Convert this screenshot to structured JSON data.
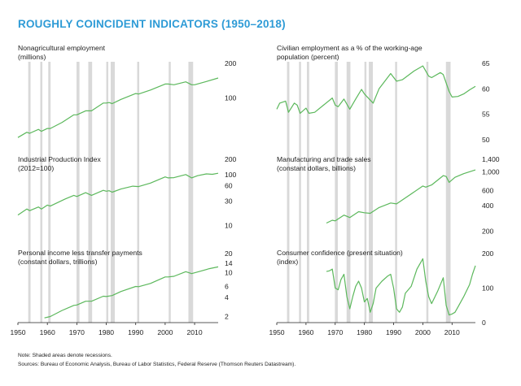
{
  "title": "ROUGHLY COINCIDENT INDICATORS (1950–2018)",
  "note": "Note: Shaded areas denote recessions.",
  "sources": "Sources: Bureau of Economic Analysis, Bureau of Labor Statistics, Federal Reserve (Thomson Reuters Datastream).",
  "colors": {
    "title": "#2e9bd6",
    "line": "#5cb85c",
    "recession": "#d9d9d9",
    "axis": "#222222"
  },
  "chart_data": {
    "type": "line",
    "x_axis": {
      "range": [
        1950,
        2018
      ],
      "ticks": [
        1950,
        1960,
        1970,
        1980,
        1990,
        2000,
        2010
      ]
    },
    "recessions": [
      [
        1953.5,
        1954.3
      ],
      [
        1957.6,
        1958.3
      ],
      [
        1960.3,
        1961.1
      ],
      [
        1969.9,
        1970.9
      ],
      [
        1973.9,
        1975.2
      ],
      [
        1980.0,
        1980.5
      ],
      [
        1981.5,
        1982.9
      ],
      [
        1990.5,
        1991.2
      ],
      [
        2001.2,
        2001.9
      ],
      [
        2007.9,
        2009.5
      ]
    ],
    "panels": [
      {
        "label_lines": [
          "Nonagricultural employment",
          "(millions)"
        ],
        "scale": "log",
        "ylim": [
          43,
          200
        ],
        "y_ticks": [
          {
            "v": 200,
            "t": "200"
          },
          {
            "v": 100,
            "t": "100"
          }
        ],
        "x_start": 1950,
        "points": [
          [
            1950,
            45
          ],
          [
            1953,
            50
          ],
          [
            1954,
            49
          ],
          [
            1957,
            53
          ],
          [
            1958,
            51
          ],
          [
            1960,
            54
          ],
          [
            1961,
            54
          ],
          [
            1965,
            61
          ],
          [
            1969,
            71
          ],
          [
            1970,
            71
          ],
          [
            1973,
            77
          ],
          [
            1975,
            77
          ],
          [
            1979,
            90
          ],
          [
            1980,
            90
          ],
          [
            1981,
            91
          ],
          [
            1982,
            89
          ],
          [
            1985,
            97
          ],
          [
            1990,
            109
          ],
          [
            1991,
            108
          ],
          [
            1995,
            117
          ],
          [
            2000,
            132
          ],
          [
            2001,
            132
          ],
          [
            2003,
            130
          ],
          [
            2007,
            138
          ],
          [
            2009,
            130
          ],
          [
            2010,
            130
          ],
          [
            2014,
            139
          ],
          [
            2018,
            149
          ]
        ]
      },
      {
        "label_lines": [
          "Civilian employment as a % of the working-age",
          "population (percent)"
        ],
        "scale": "linear",
        "ylim": [
          50,
          65
        ],
        "y_ticks": [
          {
            "v": 65,
            "t": "65"
          },
          {
            "v": 60,
            "t": "60"
          },
          {
            "v": 55,
            "t": "55"
          },
          {
            "v": 50,
            "t": "50"
          }
        ],
        "x_start": 1950,
        "points": [
          [
            1950,
            56
          ],
          [
            1951,
            57.2
          ],
          [
            1953,
            57.6
          ],
          [
            1954,
            55.4
          ],
          [
            1956,
            57.2
          ],
          [
            1957,
            56.8
          ],
          [
            1958,
            55.2
          ],
          [
            1960,
            56.2
          ],
          [
            1961,
            55.2
          ],
          [
            1963,
            55.4
          ],
          [
            1966,
            56.8
          ],
          [
            1969,
            58.2
          ],
          [
            1970,
            56.8
          ],
          [
            1971,
            56.5
          ],
          [
            1973,
            58
          ],
          [
            1975,
            56
          ],
          [
            1977,
            58
          ],
          [
            1979,
            59.9
          ],
          [
            1980,
            59
          ],
          [
            1983,
            57.2
          ],
          [
            1985,
            60
          ],
          [
            1989,
            63
          ],
          [
            1991,
            61.5
          ],
          [
            1993,
            61.8
          ],
          [
            1997,
            63.5
          ],
          [
            2000,
            64.5
          ],
          [
            2002,
            62.5
          ],
          [
            2003,
            62.2
          ],
          [
            2006,
            63.2
          ],
          [
            2007,
            62.8
          ],
          [
            2009,
            59.5
          ],
          [
            2010,
            58.4
          ],
          [
            2012,
            58.5
          ],
          [
            2014,
            59
          ],
          [
            2016,
            59.8
          ],
          [
            2018,
            60.5
          ]
        ]
      },
      {
        "label_lines": [
          "Industrial Production Index",
          "(2012=100)"
        ],
        "scale": "log",
        "ylim": [
          7,
          200
        ],
        "y_ticks": [
          {
            "v": 200,
            "t": "200"
          },
          {
            "v": 100,
            "t": "100"
          },
          {
            "v": 60,
            "t": "60"
          },
          {
            "v": 30,
            "t": "30"
          },
          {
            "v": 10,
            "t": "10"
          }
        ],
        "x_start": 1950,
        "points": [
          [
            1950,
            16
          ],
          [
            1953,
            21
          ],
          [
            1954,
            19.5
          ],
          [
            1957,
            23
          ],
          [
            1958,
            21
          ],
          [
            1960,
            25
          ],
          [
            1961,
            24
          ],
          [
            1966,
            33
          ],
          [
            1969,
            39
          ],
          [
            1970,
            37
          ],
          [
            1973,
            44
          ],
          [
            1975,
            39
          ],
          [
            1979,
            49
          ],
          [
            1980,
            47
          ],
          [
            1981,
            48
          ],
          [
            1982,
            45
          ],
          [
            1985,
            52
          ],
          [
            1989,
            59
          ],
          [
            1991,
            58
          ],
          [
            1995,
            68
          ],
          [
            2000,
            90
          ],
          [
            2001,
            86
          ],
          [
            2003,
            87
          ],
          [
            2007,
            100
          ],
          [
            2009,
            86
          ],
          [
            2011,
            95
          ],
          [
            2014,
            103
          ],
          [
            2016,
            101
          ],
          [
            2018,
            106
          ]
        ]
      },
      {
        "label_lines": [
          "Manufacturing and trade sales",
          "(constant dollars, billions)"
        ],
        "scale": "log",
        "ylim": [
          190,
          1400
        ],
        "y_ticks": [
          {
            "v": 1400,
            "t": "1,400"
          },
          {
            "v": 1000,
            "t": "1,000"
          },
          {
            "v": 600,
            "t": "600"
          },
          {
            "v": 400,
            "t": "400"
          },
          {
            "v": 200,
            "t": "200"
          }
        ],
        "x_start": 1967,
        "points": [
          [
            1967,
            250
          ],
          [
            1969,
            270
          ],
          [
            1970,
            265
          ],
          [
            1973,
            310
          ],
          [
            1975,
            290
          ],
          [
            1978,
            340
          ],
          [
            1980,
            330
          ],
          [
            1982,
            325
          ],
          [
            1985,
            380
          ],
          [
            1989,
            430
          ],
          [
            1991,
            420
          ],
          [
            1995,
            520
          ],
          [
            2000,
            680
          ],
          [
            2001,
            660
          ],
          [
            2003,
            700
          ],
          [
            2007,
            900
          ],
          [
            2008,
            880
          ],
          [
            2009,
            750
          ],
          [
            2011,
            860
          ],
          [
            2014,
            950
          ],
          [
            2018,
            1050
          ]
        ]
      },
      {
        "label_lines": [
          "Personal income less transfer payments",
          "(constant dollars, trillions)"
        ],
        "scale": "log",
        "ylim": [
          1.6,
          20
        ],
        "y_ticks": [
          {
            "v": 20,
            "t": "20"
          },
          {
            "v": 14,
            "t": "14"
          },
          {
            "v": 10,
            "t": "10"
          },
          {
            "v": 6,
            "t": "6"
          },
          {
            "v": 4,
            "t": "4"
          },
          {
            "v": 2,
            "t": "2"
          }
        ],
        "x_start": 1959,
        "points": [
          [
            1959,
            1.9
          ],
          [
            1961,
            2.0
          ],
          [
            1965,
            2.5
          ],
          [
            1969,
            3.0
          ],
          [
            1970,
            3.05
          ],
          [
            1973,
            3.5
          ],
          [
            1975,
            3.5
          ],
          [
            1979,
            4.2
          ],
          [
            1980,
            4.15
          ],
          [
            1982,
            4.3
          ],
          [
            1985,
            5.0
          ],
          [
            1990,
            6.0
          ],
          [
            1991,
            5.95
          ],
          [
            1995,
            6.7
          ],
          [
            2000,
            8.5
          ],
          [
            2001,
            8.5
          ],
          [
            2003,
            8.7
          ],
          [
            2007,
            10.3
          ],
          [
            2009,
            9.6
          ],
          [
            2012,
            10.5
          ],
          [
            2015,
            11.5
          ],
          [
            2018,
            12.3
          ]
        ]
      },
      {
        "label_lines": [
          "Consumer confidence (present situation)",
          "(index)"
        ],
        "scale": "linear",
        "ylim": [
          0,
          200
        ],
        "y_ticks": [
          {
            "v": 200,
            "t": "200"
          },
          {
            "v": 100,
            "t": "100"
          },
          {
            "v": 0,
            "t": "0"
          }
        ],
        "x_start": 1967,
        "points": [
          [
            1967,
            148
          ],
          [
            1968,
            150
          ],
          [
            1969,
            155
          ],
          [
            1970,
            100
          ],
          [
            1971,
            95
          ],
          [
            1972,
            125
          ],
          [
            1973,
            140
          ],
          [
            1974,
            75
          ],
          [
            1975,
            40
          ],
          [
            1976,
            75
          ],
          [
            1977,
            105
          ],
          [
            1978,
            120
          ],
          [
            1979,
            100
          ],
          [
            1980,
            60
          ],
          [
            1981,
            70
          ],
          [
            1982,
            30
          ],
          [
            1983,
            55
          ],
          [
            1984,
            100
          ],
          [
            1986,
            120
          ],
          [
            1988,
            135
          ],
          [
            1989,
            140
          ],
          [
            1990,
            100
          ],
          [
            1991,
            40
          ],
          [
            1992,
            30
          ],
          [
            1993,
            45
          ],
          [
            1994,
            85
          ],
          [
            1996,
            105
          ],
          [
            1998,
            155
          ],
          [
            2000,
            185
          ],
          [
            2001,
            120
          ],
          [
            2002,
            75
          ],
          [
            2003,
            55
          ],
          [
            2005,
            90
          ],
          [
            2007,
            130
          ],
          [
            2008,
            50
          ],
          [
            2009,
            22
          ],
          [
            2010,
            25
          ],
          [
            2011,
            30
          ],
          [
            2012,
            45
          ],
          [
            2014,
            75
          ],
          [
            2016,
            110
          ],
          [
            2017,
            140
          ],
          [
            2018,
            165
          ]
        ]
      }
    ]
  }
}
